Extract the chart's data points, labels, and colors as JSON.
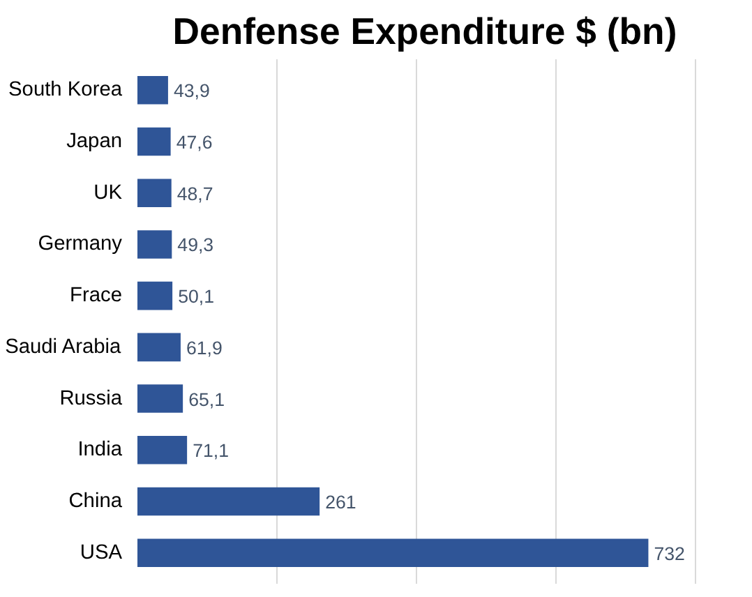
{
  "chart_data": {
    "type": "bar",
    "orientation": "horizontal",
    "title": "Denfense Expenditure $ (bn)",
    "categories": [
      "South Korea",
      "Japan",
      "UK",
      "Germany",
      "Frace",
      "Saudi Arabia",
      "Russia",
      "India",
      "China",
      "USA"
    ],
    "values": [
      43.9,
      47.6,
      48.7,
      49.3,
      50.1,
      61.9,
      65.1,
      71.1,
      261,
      732
    ],
    "value_labels": [
      "43,9",
      "47,6",
      "48,7",
      "49,3",
      "50,1",
      "61,9",
      "65,1",
      "71,1",
      "261",
      "732"
    ],
    "color": "#2f5597",
    "tick_labels": "y",
    "grid": "x"
  }
}
